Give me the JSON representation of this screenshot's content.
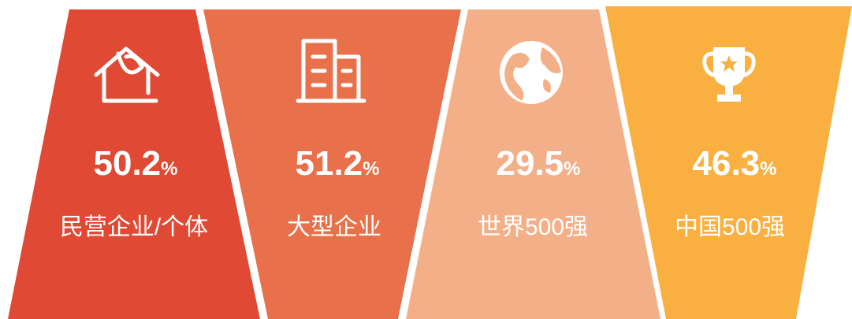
{
  "unit": "%",
  "items": [
    {
      "value": 50.2,
      "label": "民营企业/个体"
    },
    {
      "value": 51.2,
      "label": "大型企业"
    },
    {
      "value": 29.5,
      "label": "世界500强"
    },
    {
      "value": 46.3,
      "label": "中国500强"
    }
  ]
}
